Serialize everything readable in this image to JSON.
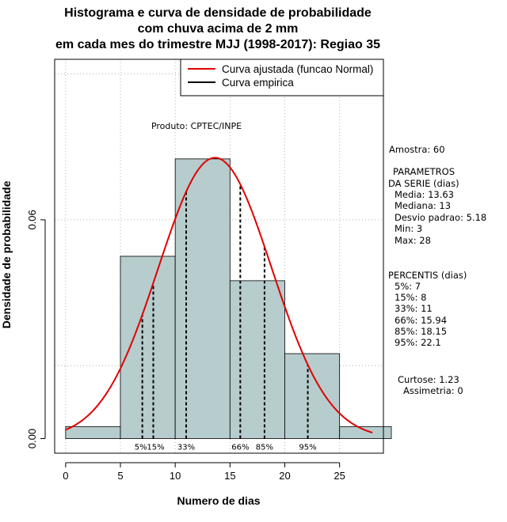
{
  "chart_data": {
    "type": "bar",
    "title_lines": [
      "Histograma e curva de densidade de probabilidade",
      "com chuva acima de 2 mm",
      "em cada mes do trimestre MJJ (1998-2017): Regiao 35"
    ],
    "xlabel": "Numero de dias",
    "ylabel": "Densidade de probabilidade",
    "xlim": [
      -1,
      29
    ],
    "ylim": [
      -0.004,
      0.104
    ],
    "x_ticks": [
      0,
      5,
      10,
      15,
      20,
      25
    ],
    "y_ticks": [
      0.0,
      0.06
    ],
    "y_tick_labels": [
      "0.00",
      "0.06"
    ],
    "grid": true,
    "bins": [
      {
        "start": 0,
        "end": 5,
        "density": 0.0033
      },
      {
        "start": 5,
        "end": 10,
        "density": 0.05
      },
      {
        "start": 10,
        "end": 15,
        "density": 0.0767
      },
      {
        "start": 15,
        "end": 20,
        "density": 0.0433
      },
      {
        "start": 20,
        "end": 25,
        "density": 0.0233
      },
      {
        "start": 25,
        "end": 30,
        "density": 0.0033
      }
    ],
    "bar_color": "#b7cccc",
    "normal_fit": {
      "mean": 13.63,
      "sd": 5.18,
      "from": 0,
      "to": 28,
      "color": "#e00000"
    },
    "percentiles": [
      {
        "label": "5%",
        "value": 7
      },
      {
        "label": "15%",
        "value": 8
      },
      {
        "label": "33%",
        "value": 11
      },
      {
        "label": "66%",
        "value": 15.94
      },
      {
        "label": "85%",
        "value": 18.15
      },
      {
        "label": "95%",
        "value": 22.1
      }
    ],
    "legend": [
      {
        "label": "Curva ajustada (funcao Normal)",
        "color": "#e00000"
      },
      {
        "label": "Curva empirica",
        "color": "#000000"
      }
    ],
    "annotation": "Produto: CPTEC/INPE"
  },
  "side_panel": {
    "amostra": "Amostra: 60",
    "param_header_1": "PARAMETROS",
    "param_header_2": "DA SERIE (dias)",
    "params": [
      "Media: 13.63",
      "Mediana: 13",
      "Desvio padrao: 5.18",
      "Min: 3",
      "Max: 28"
    ],
    "percentis_header": "PERCENTIS (dias)",
    "percentis": [
      "5%: 7",
      "15%: 8",
      "33%: 11",
      "66%: 15.94",
      "85%: 18.15",
      "95%: 22.1"
    ],
    "curtose": "Curtose: 1.23",
    "assimetria": "Assimetria: 0"
  }
}
